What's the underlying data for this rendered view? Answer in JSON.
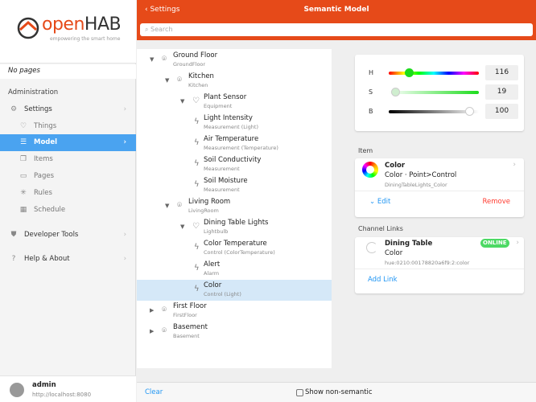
{
  "logo": {
    "brand": "openHAB",
    "tagline": "empowering the smart home"
  },
  "sidebar": {
    "no_pages": "No pages",
    "section": "Administration",
    "settings": "Settings",
    "items": [
      {
        "label": "Things",
        "icon": "lightbulb-icon"
      },
      {
        "label": "Model",
        "icon": "list-icon",
        "active": true
      },
      {
        "label": "Items",
        "icon": "items-icon"
      },
      {
        "label": "Pages",
        "icon": "monitor-icon"
      },
      {
        "label": "Rules",
        "icon": "sparkle-icon"
      },
      {
        "label": "Schedule",
        "icon": "calendar-icon"
      }
    ],
    "developer_tools": "Developer Tools",
    "help": "Help & About",
    "user": {
      "name": "admin",
      "host": "http://localhost:8080"
    }
  },
  "header": {
    "back": "Settings",
    "title": "Semantic Model",
    "search_placeholder": "Search"
  },
  "tree": [
    {
      "label": "Ground Floor",
      "sub": "GroundFloor",
      "type": "location",
      "level": 0,
      "expanded": true
    },
    {
      "label": "Kitchen",
      "sub": "Kitchen",
      "type": "location",
      "level": 1,
      "expanded": true
    },
    {
      "label": "Plant Sensor",
      "sub": "Equipment",
      "type": "equipment",
      "level": 2,
      "expanded": true
    },
    {
      "label": "Light Intensity",
      "sub": "Measurement (Light)",
      "type": "point",
      "level": 3
    },
    {
      "label": "Air Temperature",
      "sub": "Measurement (Temperature)",
      "type": "point",
      "level": 3
    },
    {
      "label": "Soil Conductivity",
      "sub": "Measurement",
      "type": "point",
      "level": 3
    },
    {
      "label": "Soil Moisture",
      "sub": "Measurement",
      "type": "point",
      "level": 3
    },
    {
      "label": "Living Room",
      "sub": "LivingRoom",
      "type": "location",
      "level": 1,
      "expanded": true
    },
    {
      "label": "Dining Table Lights",
      "sub": "Lightbulb",
      "type": "equipment",
      "level": 2,
      "expanded": true
    },
    {
      "label": "Color Temperature",
      "sub": "Control (ColorTemperature)",
      "type": "point",
      "level": 3
    },
    {
      "label": "Alert",
      "sub": "Alarm",
      "type": "point",
      "level": 3
    },
    {
      "label": "Color",
      "sub": "Control (Light)",
      "type": "point",
      "level": 3,
      "selected": true
    },
    {
      "label": "First Floor",
      "sub": "FirstFloor",
      "type": "location",
      "level": 0,
      "expanded": false
    },
    {
      "label": "Basement",
      "sub": "Basement",
      "type": "location",
      "level": 0,
      "expanded": false
    }
  ],
  "color_control": {
    "h_label": "H",
    "s_label": "S",
    "b_label": "B",
    "h": "116",
    "s": "19",
    "b": "100"
  },
  "item": {
    "section": "Item",
    "name": "Color",
    "type": "Color · Point>Control",
    "id": "DiningTableLights_Color",
    "edit": "Edit",
    "remove": "Remove"
  },
  "channel_links": {
    "section": "Channel Links",
    "thing": "Dining Table",
    "channel": "Color",
    "uid": "hue:0210:00178820a6f9:2:color",
    "status": "ONLINE",
    "add": "Add Link",
    "status_color": "#4cd964"
  },
  "footer": {
    "clear": "Clear",
    "show_non_semantic": "Show non-semantic"
  },
  "colors": {
    "header": "#e64a19",
    "active": "#4aa3f0",
    "link": "#2196f3",
    "remove": "#ff3b30"
  }
}
